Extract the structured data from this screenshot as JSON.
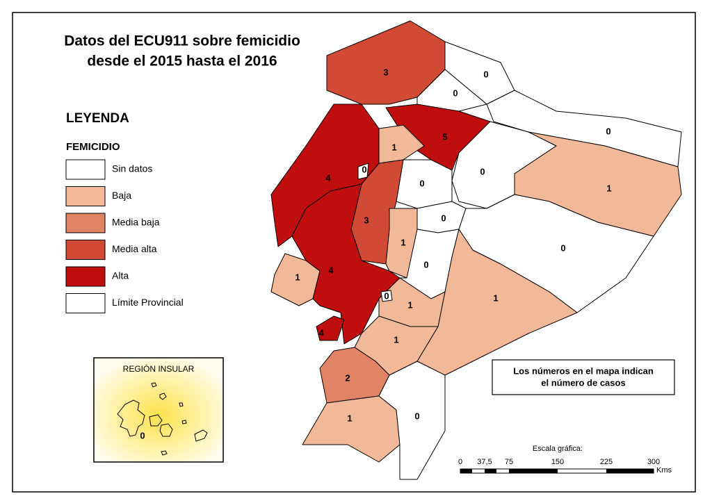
{
  "title": [
    "Datos del ECU911 sobre femicidio",
    "desde el 2015 hasta el 2016"
  ],
  "legend": {
    "title": "LEYENDA",
    "subtitle": "FEMICIDIO",
    "items": [
      {
        "label": "Sin datos",
        "color": "#ffffff"
      },
      {
        "label": "Baja",
        "color": "#f2b999"
      },
      {
        "label": "Media baja",
        "color": "#e08465"
      },
      {
        "label": "Media alta",
        "color": "#d04a35"
      },
      {
        "label": "Alta",
        "color": "#c00d0d"
      },
      {
        "label": "Límite Provincial",
        "color": "#ffffff"
      }
    ]
  },
  "map": {
    "labels": [
      3,
      0,
      0,
      0,
      5,
      1,
      4,
      0,
      1,
      0,
      3,
      1,
      4,
      1,
      0,
      0,
      0,
      1,
      1,
      1,
      2,
      1,
      0,
      0,
      0,
      4
    ]
  },
  "insular": {
    "title": "REGIÓN INSULAR",
    "label": 0
  },
  "note": [
    "Los números en el mapa indican",
    "el número de casos"
  ],
  "scale": {
    "title": "Escala gráfica:",
    "labels": [
      "0",
      "37,5",
      "75",
      "150",
      "225",
      "300"
    ],
    "unit": "Kms"
  }
}
